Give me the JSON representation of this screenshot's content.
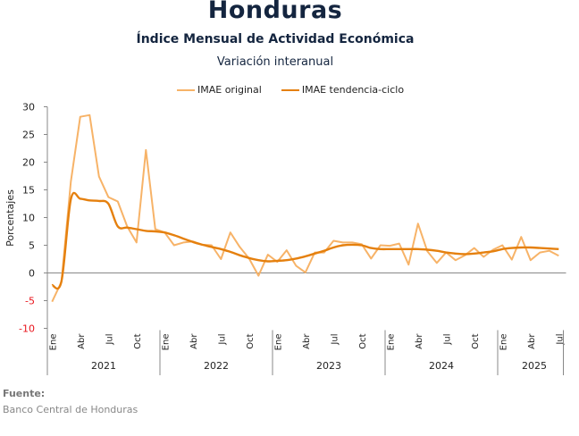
{
  "header": {
    "title": "Honduras",
    "subtitle": "Índice Mensual de Actividad Económica",
    "subtitle2": "Variación interanual"
  },
  "legend": {
    "items": [
      {
        "label": "IMAE original",
        "color": "#F7B368"
      },
      {
        "label": "IMAE tendencia-ciclo",
        "color": "#E5800E"
      }
    ]
  },
  "source": {
    "label": "Fuente:",
    "text": "Banco Central de Honduras"
  },
  "chart_data": {
    "type": "line",
    "title": "Honduras",
    "subtitle": "Índice Mensual de Actividad Económica — Variación interanual",
    "ylabel": "Porcentajes",
    "xlabel": "",
    "ylim": [
      -10,
      30
    ],
    "yticks": [
      {
        "value": 30,
        "label": "30"
      },
      {
        "value": 25,
        "label": "25"
      },
      {
        "value": 20,
        "label": "20"
      },
      {
        "value": 15,
        "label": "15"
      },
      {
        "value": 10,
        "label": "10"
      },
      {
        "value": 5,
        "label": "5"
      },
      {
        "value": 0,
        "label": "0"
      },
      {
        "value": -5,
        "label": "-5"
      },
      {
        "value": -10,
        "label": "-10"
      }
    ],
    "negative_tick_color": "#E8131B",
    "month_tick_labels": [
      "Ene",
      "Abr",
      "Jul",
      "Oct"
    ],
    "years": [
      "2021",
      "2022",
      "2023",
      "2024",
      "2025"
    ],
    "months_per_year": [
      12,
      12,
      12,
      12,
      7
    ],
    "legend_position": "top-center",
    "grid": false,
    "series": [
      {
        "name": "IMAE original",
        "color": "#F7B368",
        "values": [
          -5.2,
          -1.6,
          16.5,
          28.2,
          28.5,
          17.4,
          13.7,
          12.9,
          8.4,
          5.5,
          22.2,
          7.9,
          7.3,
          5.0,
          5.5,
          5.7,
          5.1,
          5.0,
          2.5,
          7.3,
          4.7,
          2.6,
          -0.5,
          3.3,
          2.0,
          4.1,
          1.3,
          0.1,
          3.7,
          3.7,
          5.8,
          5.5,
          5.5,
          5.2,
          2.6,
          5.0,
          4.9,
          5.3,
          1.5,
          8.9,
          3.9,
          1.8,
          3.7,
          2.3,
          3.2,
          4.5,
          2.9,
          4.2,
          5.0,
          2.4,
          6.5,
          2.3,
          3.7,
          4.0,
          3.1
        ]
      },
      {
        "name": "IMAE tendencia-ciclo",
        "color": "#E5800E",
        "values": [
          -2.2,
          -1.5,
          13.3,
          13.4,
          13.1,
          13.0,
          12.5,
          8.4,
          8.2,
          7.9,
          7.6,
          7.5,
          7.3,
          6.8,
          6.2,
          5.6,
          5.1,
          4.7,
          4.3,
          3.8,
          3.2,
          2.7,
          2.3,
          2.1,
          2.2,
          2.3,
          2.6,
          3.0,
          3.5,
          4.0,
          4.6,
          5.0,
          5.1,
          5.0,
          4.5,
          4.3,
          4.3,
          4.3,
          4.3,
          4.3,
          4.2,
          4.0,
          3.7,
          3.5,
          3.4,
          3.5,
          3.7,
          3.9,
          4.3,
          4.5,
          4.6,
          4.6,
          4.5,
          4.4,
          4.3
        ]
      }
    ]
  }
}
